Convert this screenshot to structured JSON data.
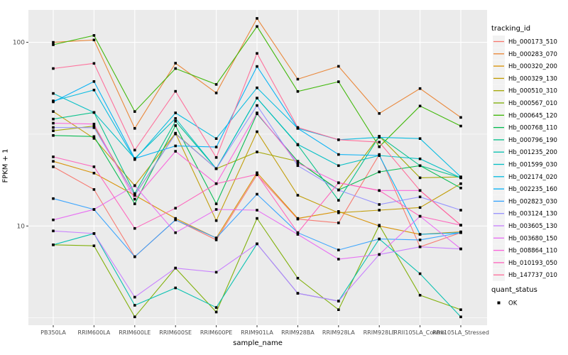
{
  "figure": {
    "background": "#ffffff",
    "panel_background": "#ebebeb",
    "grid_color": "#ffffff",
    "axis_text_color": "#4d4d4d",
    "tick_color": "#333333",
    "point_color": "#000000",
    "legend_key_background": "#f2f2f2"
  },
  "axes": {
    "y_title": "FPKM + 1",
    "x_title": "sample_name",
    "y_tick_labels": [
      "100",
      "10"
    ]
  },
  "legend": {
    "tracking_title": "tracking_id",
    "quant_title": "quant_status",
    "quant_items": [
      {
        "label": "OK",
        "swatch": "black-square-point"
      }
    ]
  },
  "chart_data": {
    "type": "line",
    "title": "",
    "xlabel": "sample_name",
    "ylabel": "FPKM + 1",
    "y_scale": "log10",
    "ylim": [
      2.9,
      150
    ],
    "y_major_ticks": [
      10,
      100
    ],
    "y_minor_ticks": [
      3.162,
      31.62
    ],
    "grid": true,
    "legend_position": "right",
    "point_shape": "square",
    "point_color": "#000000",
    "categories": [
      "PB350LA",
      "RRIM600LA",
      "RRIM600LE",
      "RRIM600SE",
      "RRIM600PE",
      "RRIM901LA",
      "RRIM928BA",
      "RRIM928LA",
      "RRIM928LE",
      "RRII105LA_Control",
      "RRII105LA_Stressed"
    ],
    "series": [
      {
        "name": "Hb_000173_510",
        "color": "#F8766D",
        "values": [
          21,
          15.8,
          6.8,
          10.8,
          8.4,
          19,
          10.9,
          10.4,
          24.5,
          7.7,
          9.2
        ]
      },
      {
        "name": "Hb_000283_070",
        "color": "#EA8331",
        "values": [
          100,
          103,
          34,
          77,
          53,
          135,
          63,
          74,
          41,
          56,
          39
        ]
      },
      {
        "name": "Hb_000320_200",
        "color": "#D89000",
        "values": [
          22.5,
          19.4,
          14.7,
          11,
          8.6,
          19.5,
          11,
          12,
          10,
          9,
          9.3
        ]
      },
      {
        "name": "Hb_000329_130",
        "color": "#C09B00",
        "values": [
          42,
          30,
          16.6,
          32,
          10.7,
          32.6,
          14.7,
          11.8,
          12.2,
          12.6,
          17
        ]
      },
      {
        "name": "Hb_000510_310",
        "color": "#A3A500",
        "values": [
          33,
          35,
          14.7,
          31.9,
          20.5,
          25.3,
          22.5,
          15.7,
          30.8,
          18.3,
          18.5
        ]
      },
      {
        "name": "Hb_000567_010",
        "color": "#7CAE00",
        "values": [
          7.9,
          7.8,
          3.2,
          5.9,
          3.4,
          11,
          5.2,
          3.5,
          10.1,
          4.2,
          3.5
        ]
      },
      {
        "name": "Hb_000645_120",
        "color": "#39B600",
        "values": [
          97,
          109,
          42,
          72,
          59,
          122,
          54,
          61,
          27,
          45,
          35
        ]
      },
      {
        "name": "Hb_000768_110",
        "color": "#00BB4E",
        "values": [
          31.1,
          30.7,
          13.2,
          35.2,
          13.2,
          40.8,
          22.5,
          15.7,
          19.7,
          21.3,
          16.1
        ]
      },
      {
        "name": "Hb_000796_190",
        "color": "#00C087",
        "values": [
          38.2,
          41.5,
          15,
          37.2,
          20.5,
          49.7,
          27.6,
          13.8,
          30.8,
          21.3,
          18.3
        ]
      },
      {
        "name": "Hb_001235_200",
        "color": "#00C0AF",
        "values": [
          7.9,
          9.1,
          3.7,
          4.6,
          3.6,
          8.0,
          4.3,
          3.9,
          8.5,
          5.5,
          3.2
        ]
      },
      {
        "name": "Hb_001599_030",
        "color": "#00BFC4",
        "values": [
          52.7,
          41.5,
          23.3,
          38.5,
          20.5,
          49.7,
          27.8,
          21.3,
          24.2,
          23.2,
          18.3
        ]
      },
      {
        "name": "Hb_002174_020",
        "color": "#00BAE0",
        "values": [
          48,
          55,
          23,
          41.3,
          29.9,
          56.5,
          34,
          29.5,
          30.4,
          29.9,
          18.5
        ]
      },
      {
        "name": "Hb_002235_160",
        "color": "#00B0F6",
        "values": [
          47.4,
          61.2,
          23.3,
          27.3,
          26.9,
          73.9,
          34,
          24.5,
          24.2,
          9.0,
          9.2
        ]
      },
      {
        "name": "Hb_002823_030",
        "color": "#35A2FF",
        "values": [
          14.1,
          12.3,
          6.8,
          10.8,
          8.6,
          14.9,
          9.2,
          7.4,
          8.5,
          8.4,
          9.2
        ]
      },
      {
        "name": "Hb_003124_130",
        "color": "#9590FF",
        "values": [
          34.4,
          34.3,
          14.7,
          31.7,
          20.5,
          45.3,
          21.3,
          15.7,
          13.1,
          14.4,
          12.2
        ]
      },
      {
        "name": "Hb_003605_130",
        "color": "#C77CFF",
        "values": [
          9.4,
          9.1,
          4.1,
          5.9,
          5.6,
          8.0,
          4.3,
          3.9,
          7.0,
          7.7,
          7.5
        ]
      },
      {
        "name": "Hb_003680_150",
        "color": "#E76BF3",
        "values": [
          10.8,
          12.3,
          16.6,
          9.2,
          12.3,
          12.2,
          9.0,
          6.6,
          7.0,
          11.3,
          7.5
        ]
      },
      {
        "name": "Hb_008864_110",
        "color": "#FA62DB",
        "values": [
          36.3,
          35.9,
          14,
          25.5,
          17,
          41.3,
          22,
          17.2,
          15.6,
          15.6,
          10.1
        ]
      },
      {
        "name": "Hb_010193_050",
        "color": "#FF62BC",
        "values": [
          23.8,
          21.0,
          9.7,
          12.5,
          17.0,
          19.1,
          9.2,
          17.2,
          15.6,
          11.3,
          10.1
        ]
      },
      {
        "name": "Hb_147737_010",
        "color": "#FF6A98",
        "values": [
          72,
          76.8,
          25.9,
          54.1,
          23.6,
          87,
          34.4,
          29.5,
          28.6,
          15.6,
          10.1
        ]
      }
    ]
  }
}
